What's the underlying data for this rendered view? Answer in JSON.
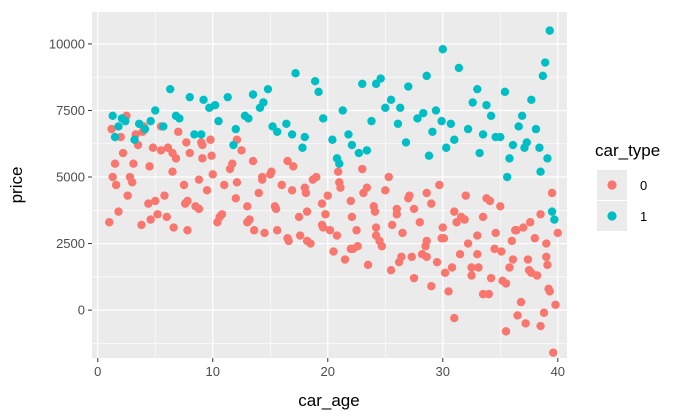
{
  "chart_data": {
    "type": "scatter",
    "title": "",
    "xlabel": "car_age",
    "ylabel": "price",
    "xlim": [
      -0.5,
      40.8
    ],
    "ylim": [
      -1800,
      11200
    ],
    "x_ticks": [
      0,
      10,
      20,
      30,
      40
    ],
    "y_ticks": [
      0,
      2500,
      5000,
      7500,
      10000
    ],
    "x_tick_labels": [
      "0",
      "10",
      "20",
      "30",
      "40"
    ],
    "y_tick_labels": [
      "0",
      "2500",
      "5000",
      "7500",
      "10000"
    ],
    "grid": true,
    "legend": {
      "title": "car_type",
      "placement": "right"
    },
    "background": "#ebebeb",
    "gridline_color": "#ffffff",
    "series": [
      {
        "name": "0",
        "color": "#F8766D",
        "x": [
          1.0,
          1.2,
          1.5,
          2.0,
          2.5,
          3.0,
          3.5,
          4.0,
          4.5,
          5.0,
          5.5,
          6.0,
          6.5,
          7.0,
          7.5,
          8.0,
          8.5,
          9.0,
          9.5,
          10.0,
          1.8,
          2.8,
          3.8,
          4.8,
          5.8,
          6.8,
          7.8,
          8.8,
          9.8,
          10.8,
          11.5,
          12.0,
          12.5,
          13.0,
          13.5,
          14.0,
          14.5,
          15.0,
          15.5,
          16.0,
          16.5,
          17.0,
          17.5,
          18.0,
          18.5,
          19.0,
          19.5,
          20.0,
          20.5,
          21.0,
          21.5,
          22.0,
          22.5,
          23.0,
          23.5,
          24.0,
          24.5,
          25.0,
          25.5,
          26.0,
          26.5,
          27.0,
          27.5,
          28.0,
          28.5,
          29.0,
          29.5,
          30.0,
          30.5,
          31.0,
          31.5,
          32.0,
          32.5,
          33.0,
          33.5,
          34.0,
          34.5,
          35.0,
          35.5,
          36.0,
          36.5,
          37.0,
          37.5,
          38.0,
          38.5,
          39.0,
          39.5,
          40.0,
          2.2,
          3.3,
          4.4,
          5.5,
          6.6,
          7.7,
          8.8,
          9.9,
          11.0,
          12.1,
          13.2,
          14.3,
          15.4,
          16.5,
          17.6,
          18.7,
          19.8,
          20.9,
          22.0,
          23.1,
          24.2,
          25.3,
          26.4,
          27.5,
          28.6,
          29.7,
          30.8,
          31.9,
          33.0,
          34.1,
          35.2,
          36.3,
          37.4,
          38.5,
          39.2,
          1.3,
          2.6,
          3.9,
          5.2,
          6.5,
          7.8,
          9.1,
          10.4,
          11.7,
          13.0,
          14.3,
          15.6,
          16.9,
          18.2,
          19.5,
          20.8,
          22.1,
          23.4,
          24.7,
          26.0,
          27.3,
          28.6,
          29.9,
          31.2,
          32.5,
          33.8,
          35.1,
          36.4,
          37.7,
          39.0,
          1.6,
          3.1,
          4.6,
          6.1,
          7.6,
          9.1,
          10.6,
          12.1,
          13.6,
          15.1,
          16.6,
          18.1,
          19.6,
          21.1,
          22.6,
          24.1,
          25.6,
          27.1,
          28.6,
          30.1,
          31.6,
          33.1,
          34.6,
          36.1,
          37.6,
          39.1,
          29.0,
          31.0,
          33.5,
          35.5,
          36.8,
          37.2,
          38.2,
          38.8,
          39.3,
          39.6,
          39.8,
          35.8,
          34.2,
          32.2,
          30.2,
          28.2,
          26.2,
          24.2,
          22.2,
          20.2,
          18.2
        ],
        "y": [
          3300,
          6800,
          5500,
          6500,
          7300,
          4800,
          6200,
          6900,
          5400,
          4100,
          6000,
          3500,
          5200,
          6700,
          4700,
          5900,
          3900,
          6300,
          4500,
          5100,
          3700,
          5000,
          3200,
          6100,
          4300,
          5700,
          3000,
          4900,
          6400,
          3600,
          5300,
          4200,
          6000,
          3300,
          5600,
          4400,
          2900,
          5100,
          3800,
          4700,
          2700,
          5400,
          3500,
          4600,
          2500,
          5000,
          3200,
          4300,
          2200,
          4800,
          1900,
          4100,
          3000,
          5300,
          1700,
          3900,
          2600,
          4500,
          1500,
          3600,
          2900,
          4200,
          1200,
          3300,
          2400,
          4000,
          1800,
          3100,
          700,
          3700,
          2100,
          4300,
          1300,
          2800,
          3500,
          600,
          2300,
          3900,
          1000,
          2600,
          -200,
          3100,
          1500,
          2700,
          -600,
          2000,
          4400,
          2900,
          5900,
          6600,
          4000,
          6900,
          3100,
          6300,
          3800,
          5800,
          4700,
          6400,
          3400,
          5000,
          3900,
          5600,
          2800,
          4900,
          3600,
          5200,
          2300,
          4400,
          3100,
          5000,
          2000,
          3800,
          2600,
          4700,
          1600,
          3400,
          2100,
          4100,
          1100,
          3000,
          1900,
          3600,
          800,
          5000,
          4300,
          6700,
          3600,
          5900,
          4100,
          6200,
          3300,
          5500,
          3900,
          4900,
          3000,
          4500,
          3700,
          4000,
          2800,
          3500,
          4600,
          2400,
          3800,
          2000,
          4400,
          2700,
          3300,
          1600,
          4200,
          2200,
          3000,
          1400,
          2500,
          4700,
          5500,
          3400,
          6100,
          4000,
          5700,
          3500,
          4800,
          3000,
          5200,
          2600,
          4400,
          3100,
          4600,
          2400,
          3700,
          3200,
          4300,
          2000,
          2700,
          3500,
          1600,
          2900,
          1900,
          3300,
          1700,
          900,
          -300,
          600,
          -800,
          300,
          -500,
          1300,
          -100,
          700,
          -1600,
          200,
          1600,
          1200,
          2500,
          1400,
          2100,
          1800,
          2800,
          2300,
          3000,
          2600
        ]
      },
      {
        "name": "1",
        "color": "#00BFC4",
        "x": [
          1.3,
          1.8,
          2.4,
          3.2,
          4.1,
          5.0,
          6.3,
          7.1,
          8.4,
          9.2,
          9.7,
          10.5,
          11.3,
          12.0,
          12.8,
          13.5,
          14.1,
          14.8,
          15.6,
          16.4,
          17.2,
          18.0,
          18.9,
          19.6,
          20.4,
          21.3,
          22.1,
          23.0,
          23.8,
          24.6,
          25.5,
          26.3,
          27.0,
          27.8,
          28.6,
          29.4,
          30.0,
          30.7,
          31.4,
          32.2,
          33.0,
          33.8,
          34.6,
          35.4,
          36.1,
          36.9,
          37.7,
          38.4,
          38.9,
          39.3,
          39.7,
          1.5,
          2.1,
          3.6,
          4.6,
          5.7,
          6.8,
          8.0,
          9.0,
          10.2,
          11.8,
          13.1,
          14.4,
          15.2,
          16.9,
          17.8,
          19.2,
          20.8,
          21.8,
          22.7,
          24.2,
          25.0,
          26.8,
          28.3,
          29.1,
          29.9,
          31.0,
          32.6,
          33.5,
          34.2,
          35.0,
          35.8,
          36.6,
          37.3,
          38.1,
          38.7,
          39.5,
          21.0,
          23.4,
          26.1,
          28.8,
          30.3,
          33.2,
          35.6,
          37.1,
          38.5,
          39.1
        ],
        "y": [
          7300,
          6900,
          7100,
          6400,
          6800,
          7500,
          8300,
          7200,
          6600,
          7900,
          7600,
          7100,
          8000,
          6800,
          7300,
          8100,
          7600,
          8300,
          6700,
          7000,
          8900,
          6500,
          8600,
          7200,
          6400,
          7500,
          6200,
          8500,
          7100,
          8700,
          7900,
          7600,
          8400,
          7200,
          8800,
          7500,
          9800,
          7000,
          9100,
          6800,
          8300,
          7700,
          6500,
          8200,
          6200,
          7300,
          7900,
          6100,
          9300,
          10500,
          3400,
          6500,
          7200,
          7000,
          7100,
          6900,
          7300,
          8000,
          6600,
          7700,
          6200,
          7200,
          7800,
          6900,
          6600,
          6100,
          8200,
          5700,
          6600,
          5900,
          8500,
          7600,
          6300,
          7400,
          6700,
          7100,
          6400,
          7800,
          6600,
          7300,
          6500,
          5700,
          6900,
          6300,
          6800,
          8800,
          3700,
          5500,
          6000,
          7000,
          5800,
          6100,
          5900,
          5000,
          6100,
          5200,
          5700
        ]
      }
    ]
  }
}
